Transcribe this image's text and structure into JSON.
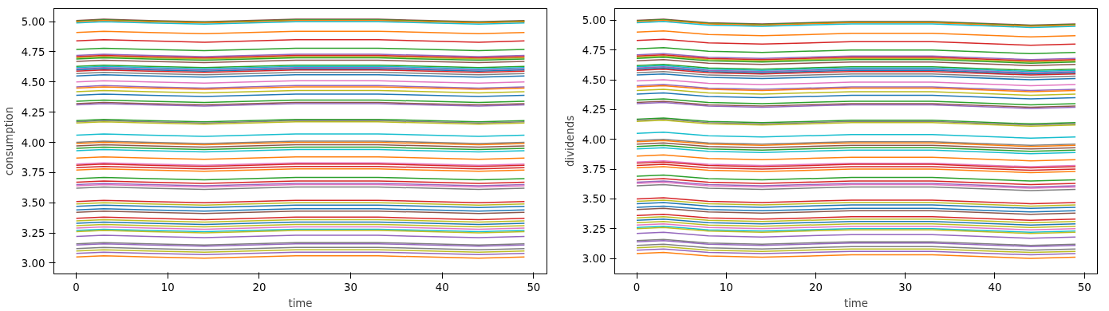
{
  "chart_data": [
    {
      "type": "line",
      "xlabel": "time",
      "ylabel": "consumption",
      "xlim": [
        -2.45,
        51.45
      ],
      "ylim": [
        2.91,
        5.11
      ],
      "xticks": [
        0,
        10,
        20,
        30,
        40,
        50
      ],
      "yticks": [
        {
          "value": 3,
          "label": "3.00"
        },
        {
          "value": 3.25,
          "label": "3.25"
        },
        {
          "value": 3.5,
          "label": "3.50"
        },
        {
          "value": 3.75,
          "label": "3.75"
        },
        {
          "value": 4,
          "label": "4.00"
        },
        {
          "value": 4.25,
          "label": "4.25"
        },
        {
          "value": 4.5,
          "label": "4.50"
        },
        {
          "value": 4.75,
          "label": "4.75"
        },
        {
          "value": 5,
          "label": "5.00"
        }
      ],
      "grid": false,
      "x": [
        0,
        3,
        8,
        14,
        24,
        33,
        44,
        49
      ],
      "series": [
        {
          "color": "#8c564b",
          "values": [
            5.01,
            5.02,
            5.01,
            5.0,
            5.02,
            5.02,
            5.0,
            5.01
          ]
        },
        {
          "color": "#2ca02c",
          "values": [
            5.005,
            5.015,
            5.005,
            4.995,
            5.015,
            5.015,
            4.995,
            5.005
          ]
        },
        {
          "color": "#ff7f0e",
          "values": [
            5.0,
            5.01,
            5.0,
            4.99,
            5.01,
            5.01,
            4.99,
            5.0
          ]
        },
        {
          "color": "#17becf",
          "values": [
            4.99,
            5.0,
            4.99,
            4.98,
            5.0,
            5.0,
            4.98,
            4.99
          ]
        },
        {
          "color": "#ff7f0e",
          "values": [
            4.91,
            4.92,
            4.91,
            4.9,
            4.92,
            4.92,
            4.9,
            4.91
          ]
        },
        {
          "color": "#d62728",
          "values": [
            4.84,
            4.85,
            4.84,
            4.83,
            4.85,
            4.85,
            4.83,
            4.84
          ]
        },
        {
          "color": "#2ca02c",
          "values": [
            4.77,
            4.78,
            4.77,
            4.76,
            4.78,
            4.78,
            4.76,
            4.77
          ]
        },
        {
          "color": "#9467bd",
          "values": [
            4.72,
            4.73,
            4.72,
            4.71,
            4.73,
            4.73,
            4.71,
            4.72
          ]
        },
        {
          "color": "#bcbd22",
          "values": [
            4.7,
            4.71,
            4.7,
            4.69,
            4.71,
            4.71,
            4.69,
            4.7
          ]
        },
        {
          "color": "#d62728",
          "values": [
            4.71,
            4.72,
            4.71,
            4.7,
            4.72,
            4.72,
            4.7,
            4.71
          ]
        },
        {
          "color": "#2ca02c",
          "values": [
            4.69,
            4.7,
            4.69,
            4.68,
            4.7,
            4.7,
            4.68,
            4.69
          ]
        },
        {
          "color": "#8c564b",
          "values": [
            4.67,
            4.68,
            4.67,
            4.66,
            4.68,
            4.68,
            4.66,
            4.67
          ]
        },
        {
          "color": "#2ca02c",
          "values": [
            4.63,
            4.64,
            4.63,
            4.62,
            4.64,
            4.64,
            4.62,
            4.63
          ]
        },
        {
          "color": "#17becf",
          "values": [
            4.62,
            4.63,
            4.62,
            4.61,
            4.63,
            4.63,
            4.61,
            4.62
          ]
        },
        {
          "color": "#9467bd",
          "values": [
            4.61,
            4.62,
            4.61,
            4.6,
            4.62,
            4.62,
            4.6,
            4.61
          ]
        },
        {
          "color": "#1f77b4",
          "values": [
            4.6,
            4.61,
            4.6,
            4.59,
            4.61,
            4.61,
            4.59,
            4.6
          ]
        },
        {
          "color": "#d62728",
          "values": [
            4.59,
            4.6,
            4.59,
            4.58,
            4.6,
            4.6,
            4.58,
            4.59
          ]
        },
        {
          "color": "#7f7f7f",
          "values": [
            4.57,
            4.58,
            4.57,
            4.56,
            4.58,
            4.58,
            4.56,
            4.57
          ]
        },
        {
          "color": "#1f77b4",
          "values": [
            4.55,
            4.56,
            4.55,
            4.54,
            4.56,
            4.56,
            4.54,
            4.55
          ]
        },
        {
          "color": "#e377c2",
          "values": [
            4.5,
            4.51,
            4.5,
            4.49,
            4.51,
            4.51,
            4.49,
            4.5
          ]
        },
        {
          "color": "#9467bd",
          "values": [
            4.46,
            4.47,
            4.46,
            4.45,
            4.47,
            4.47,
            4.45,
            4.46
          ]
        },
        {
          "color": "#ff7f0e",
          "values": [
            4.45,
            4.46,
            4.45,
            4.44,
            4.46,
            4.46,
            4.44,
            4.45
          ]
        },
        {
          "color": "#bcbd22",
          "values": [
            4.42,
            4.43,
            4.42,
            4.41,
            4.43,
            4.43,
            4.41,
            4.42
          ]
        },
        {
          "color": "#1f77b4",
          "values": [
            4.39,
            4.4,
            4.39,
            4.38,
            4.4,
            4.4,
            4.38,
            4.39
          ]
        },
        {
          "color": "#2ca02c",
          "values": [
            4.34,
            4.35,
            4.34,
            4.33,
            4.35,
            4.35,
            4.33,
            4.34
          ]
        },
        {
          "color": "#8c564b",
          "values": [
            4.32,
            4.33,
            4.32,
            4.31,
            4.33,
            4.33,
            4.31,
            4.32
          ]
        },
        {
          "color": "#9467bd",
          "values": [
            4.31,
            4.32,
            4.31,
            4.3,
            4.32,
            4.32,
            4.3,
            4.31
          ]
        },
        {
          "color": "#2ca02c",
          "values": [
            4.18,
            4.19,
            4.18,
            4.17,
            4.19,
            4.19,
            4.17,
            4.18
          ]
        },
        {
          "color": "#7f7f7f",
          "values": [
            4.17,
            4.18,
            4.17,
            4.16,
            4.18,
            4.18,
            4.16,
            4.17
          ]
        },
        {
          "color": "#bcbd22",
          "values": [
            4.16,
            4.17,
            4.16,
            4.15,
            4.17,
            4.17,
            4.15,
            4.16
          ]
        },
        {
          "color": "#17becf",
          "values": [
            4.06,
            4.07,
            4.06,
            4.05,
            4.07,
            4.07,
            4.05,
            4.06
          ]
        },
        {
          "color": "#7f7f7f",
          "values": [
            4.0,
            4.01,
            4.0,
            3.99,
            4.01,
            4.01,
            3.99,
            4.0
          ]
        },
        {
          "color": "#ff7f0e",
          "values": [
            3.99,
            4.0,
            3.99,
            3.98,
            4.0,
            4.0,
            3.98,
            3.99
          ]
        },
        {
          "color": "#8c564b",
          "values": [
            3.97,
            3.98,
            3.97,
            3.96,
            3.98,
            3.98,
            3.96,
            3.97
          ]
        },
        {
          "color": "#2ca02c",
          "values": [
            3.95,
            3.96,
            3.95,
            3.94,
            3.96,
            3.96,
            3.94,
            3.95
          ]
        },
        {
          "color": "#17becf",
          "values": [
            3.93,
            3.94,
            3.93,
            3.92,
            3.94,
            3.94,
            3.92,
            3.93
          ]
        },
        {
          "color": "#ff7f0e",
          "values": [
            3.87,
            3.88,
            3.87,
            3.86,
            3.88,
            3.88,
            3.86,
            3.87
          ]
        },
        {
          "color": "#e377c2",
          "values": [
            3.82,
            3.83,
            3.82,
            3.81,
            3.83,
            3.83,
            3.81,
            3.82
          ]
        },
        {
          "color": "#d62728",
          "values": [
            3.81,
            3.82,
            3.81,
            3.8,
            3.82,
            3.82,
            3.8,
            3.81
          ]
        },
        {
          "color": "#d62728",
          "values": [
            3.79,
            3.8,
            3.79,
            3.78,
            3.8,
            3.8,
            3.78,
            3.79
          ]
        },
        {
          "color": "#ff7f0e",
          "values": [
            3.77,
            3.78,
            3.77,
            3.76,
            3.78,
            3.78,
            3.76,
            3.77
          ]
        },
        {
          "color": "#2ca02c",
          "values": [
            3.7,
            3.71,
            3.7,
            3.69,
            3.71,
            3.71,
            3.69,
            3.7
          ]
        },
        {
          "color": "#d62728",
          "values": [
            3.67,
            3.68,
            3.67,
            3.66,
            3.68,
            3.68,
            3.66,
            3.67
          ]
        },
        {
          "color": "#9467bd",
          "values": [
            3.65,
            3.66,
            3.65,
            3.64,
            3.66,
            3.66,
            3.64,
            3.65
          ]
        },
        {
          "color": "#e377c2",
          "values": [
            3.64,
            3.65,
            3.64,
            3.63,
            3.65,
            3.65,
            3.63,
            3.64
          ]
        },
        {
          "color": "#7f7f7f",
          "values": [
            3.62,
            3.63,
            3.62,
            3.61,
            3.63,
            3.63,
            3.61,
            3.62
          ]
        },
        {
          "color": "#d62728",
          "values": [
            3.51,
            3.52,
            3.51,
            3.5,
            3.52,
            3.52,
            3.5,
            3.51
          ]
        },
        {
          "color": "#bcbd22",
          "values": [
            3.49,
            3.5,
            3.49,
            3.48,
            3.5,
            3.5,
            3.48,
            3.49
          ]
        },
        {
          "color": "#1f77b4",
          "values": [
            3.47,
            3.48,
            3.47,
            3.46,
            3.48,
            3.48,
            3.46,
            3.47
          ]
        },
        {
          "color": "#1f77b4",
          "values": [
            3.44,
            3.45,
            3.44,
            3.43,
            3.45,
            3.45,
            3.43,
            3.44
          ]
        },
        {
          "color": "#8c564b",
          "values": [
            3.42,
            3.43,
            3.42,
            3.41,
            3.43,
            3.43,
            3.41,
            3.42
          ]
        },
        {
          "color": "#d62728",
          "values": [
            3.37,
            3.38,
            3.37,
            3.36,
            3.38,
            3.38,
            3.36,
            3.37
          ]
        },
        {
          "color": "#bcbd22",
          "values": [
            3.35,
            3.36,
            3.35,
            3.34,
            3.36,
            3.36,
            3.34,
            3.35
          ]
        },
        {
          "color": "#1f77b4",
          "values": [
            3.33,
            3.34,
            3.33,
            3.32,
            3.34,
            3.34,
            3.32,
            3.33
          ]
        },
        {
          "color": "#bcbd22",
          "values": [
            3.31,
            3.32,
            3.31,
            3.3,
            3.32,
            3.32,
            3.3,
            3.31
          ]
        },
        {
          "color": "#e377c2",
          "values": [
            3.29,
            3.3,
            3.29,
            3.28,
            3.3,
            3.3,
            3.28,
            3.29
          ]
        },
        {
          "color": "#17becf",
          "values": [
            3.27,
            3.28,
            3.27,
            3.26,
            3.28,
            3.28,
            3.26,
            3.27
          ]
        },
        {
          "color": "#bcbd22",
          "values": [
            3.26,
            3.27,
            3.26,
            3.25,
            3.27,
            3.27,
            3.25,
            3.26
          ]
        },
        {
          "color": "#9467bd",
          "values": [
            3.22,
            3.23,
            3.22,
            3.21,
            3.23,
            3.23,
            3.21,
            3.22
          ]
        },
        {
          "color": "#7f7f7f",
          "values": [
            3.16,
            3.17,
            3.16,
            3.15,
            3.17,
            3.17,
            3.15,
            3.16
          ]
        },
        {
          "color": "#9467bd",
          "values": [
            3.15,
            3.16,
            3.15,
            3.14,
            3.16,
            3.16,
            3.14,
            3.15
          ]
        },
        {
          "color": "#7f7f7f",
          "values": [
            3.12,
            3.13,
            3.12,
            3.11,
            3.13,
            3.13,
            3.11,
            3.12
          ]
        },
        {
          "color": "#bcbd22",
          "values": [
            3.1,
            3.11,
            3.1,
            3.09,
            3.11,
            3.11,
            3.09,
            3.1
          ]
        },
        {
          "color": "#9467bd",
          "values": [
            3.08,
            3.09,
            3.08,
            3.07,
            3.09,
            3.09,
            3.07,
            3.08
          ]
        },
        {
          "color": "#ff7f0e",
          "values": [
            3.05,
            3.06,
            3.05,
            3.04,
            3.06,
            3.06,
            3.04,
            3.05
          ]
        }
      ]
    },
    {
      "type": "line",
      "xlabel": "time",
      "ylabel": "dividends",
      "xlim": [
        -2.45,
        51.45
      ],
      "ylim": [
        2.87,
        5.1
      ],
      "xticks": [
        0,
        10,
        20,
        30,
        40,
        50
      ],
      "yticks": [
        {
          "value": 3,
          "label": "3.00"
        },
        {
          "value": 3.25,
          "label": "3.25"
        },
        {
          "value": 3.5,
          "label": "3.50"
        },
        {
          "value": 3.75,
          "label": "3.75"
        },
        {
          "value": 4,
          "label": "4.00"
        },
        {
          "value": 4.25,
          "label": "4.25"
        },
        {
          "value": 4.5,
          "label": "4.50"
        },
        {
          "value": 4.75,
          "label": "4.75"
        },
        {
          "value": 5,
          "label": "5.00"
        }
      ],
      "grid": false,
      "x": [
        0,
        3,
        8,
        14,
        24,
        33,
        44,
        49
      ],
      "series": [
        {
          "color": "#8c564b",
          "values": [
            5.0,
            5.01,
            4.98,
            4.97,
            4.99,
            4.99,
            4.96,
            4.97
          ]
        },
        {
          "color": "#2ca02c",
          "values": [
            4.995,
            5.005,
            4.975,
            4.965,
            4.985,
            4.985,
            4.955,
            4.965
          ]
        },
        {
          "color": "#ff7f0e",
          "values": [
            4.99,
            5.0,
            4.97,
            4.96,
            4.98,
            4.98,
            4.95,
            4.96
          ]
        },
        {
          "color": "#17becf",
          "values": [
            4.98,
            4.99,
            4.96,
            4.95,
            4.97,
            4.97,
            4.94,
            4.95
          ]
        },
        {
          "color": "#ff7f0e",
          "values": [
            4.9,
            4.91,
            4.88,
            4.87,
            4.89,
            4.89,
            4.86,
            4.87
          ]
        },
        {
          "color": "#d62728",
          "values": [
            4.83,
            4.84,
            4.81,
            4.8,
            4.82,
            4.82,
            4.79,
            4.8
          ]
        },
        {
          "color": "#2ca02c",
          "values": [
            4.76,
            4.77,
            4.74,
            4.73,
            4.75,
            4.75,
            4.72,
            4.73
          ]
        },
        {
          "color": "#9467bd",
          "values": [
            4.71,
            4.72,
            4.69,
            4.68,
            4.7,
            4.7,
            4.67,
            4.68
          ]
        },
        {
          "color": "#bcbd22",
          "values": [
            4.69,
            4.7,
            4.67,
            4.66,
            4.68,
            4.68,
            4.65,
            4.66
          ]
        },
        {
          "color": "#d62728",
          "values": [
            4.7,
            4.71,
            4.68,
            4.67,
            4.69,
            4.69,
            4.66,
            4.67
          ]
        },
        {
          "color": "#2ca02c",
          "values": [
            4.68,
            4.69,
            4.66,
            4.65,
            4.67,
            4.67,
            4.64,
            4.65
          ]
        },
        {
          "color": "#8c564b",
          "values": [
            4.66,
            4.67,
            4.64,
            4.63,
            4.65,
            4.65,
            4.62,
            4.63
          ]
        },
        {
          "color": "#2ca02c",
          "values": [
            4.62,
            4.63,
            4.6,
            4.59,
            4.61,
            4.61,
            4.58,
            4.59
          ]
        },
        {
          "color": "#17becf",
          "values": [
            4.61,
            4.62,
            4.59,
            4.58,
            4.6,
            4.6,
            4.57,
            4.58
          ]
        },
        {
          "color": "#9467bd",
          "values": [
            4.6,
            4.61,
            4.58,
            4.57,
            4.59,
            4.59,
            4.56,
            4.57
          ]
        },
        {
          "color": "#1f77b4",
          "values": [
            4.59,
            4.6,
            4.57,
            4.56,
            4.58,
            4.58,
            4.55,
            4.56
          ]
        },
        {
          "color": "#d62728",
          "values": [
            4.58,
            4.59,
            4.56,
            4.55,
            4.57,
            4.57,
            4.54,
            4.55
          ]
        },
        {
          "color": "#7f7f7f",
          "values": [
            4.56,
            4.57,
            4.54,
            4.53,
            4.55,
            4.55,
            4.52,
            4.53
          ]
        },
        {
          "color": "#1f77b4",
          "values": [
            4.54,
            4.55,
            4.52,
            4.51,
            4.53,
            4.53,
            4.5,
            4.51
          ]
        },
        {
          "color": "#e377c2",
          "values": [
            4.49,
            4.5,
            4.47,
            4.46,
            4.48,
            4.48,
            4.45,
            4.46
          ]
        },
        {
          "color": "#9467bd",
          "values": [
            4.45,
            4.46,
            4.43,
            4.42,
            4.44,
            4.44,
            4.41,
            4.42
          ]
        },
        {
          "color": "#ff7f0e",
          "values": [
            4.44,
            4.45,
            4.42,
            4.41,
            4.43,
            4.43,
            4.4,
            4.41
          ]
        },
        {
          "color": "#bcbd22",
          "values": [
            4.41,
            4.42,
            4.39,
            4.38,
            4.4,
            4.4,
            4.37,
            4.38
          ]
        },
        {
          "color": "#1f77b4",
          "values": [
            4.38,
            4.39,
            4.36,
            4.35,
            4.37,
            4.37,
            4.34,
            4.35
          ]
        },
        {
          "color": "#2ca02c",
          "values": [
            4.33,
            4.34,
            4.31,
            4.3,
            4.32,
            4.32,
            4.29,
            4.3
          ]
        },
        {
          "color": "#8c564b",
          "values": [
            4.31,
            4.32,
            4.29,
            4.28,
            4.3,
            4.3,
            4.27,
            4.28
          ]
        },
        {
          "color": "#9467bd",
          "values": [
            4.3,
            4.31,
            4.28,
            4.27,
            4.29,
            4.29,
            4.26,
            4.27
          ]
        },
        {
          "color": "#2ca02c",
          "values": [
            4.17,
            4.18,
            4.15,
            4.14,
            4.16,
            4.16,
            4.13,
            4.14
          ]
        },
        {
          "color": "#7f7f7f",
          "values": [
            4.16,
            4.17,
            4.14,
            4.13,
            4.15,
            4.15,
            4.12,
            4.13
          ]
        },
        {
          "color": "#bcbd22",
          "values": [
            4.15,
            4.16,
            4.13,
            4.12,
            4.14,
            4.14,
            4.11,
            4.12
          ]
        },
        {
          "color": "#17becf",
          "values": [
            4.05,
            4.06,
            4.03,
            4.02,
            4.04,
            4.04,
            4.01,
            4.02
          ]
        },
        {
          "color": "#7f7f7f",
          "values": [
            3.99,
            4.0,
            3.97,
            3.96,
            3.98,
            3.98,
            3.95,
            3.96
          ]
        },
        {
          "color": "#ff7f0e",
          "values": [
            3.98,
            3.99,
            3.96,
            3.95,
            3.97,
            3.97,
            3.94,
            3.95
          ]
        },
        {
          "color": "#8c564b",
          "values": [
            3.96,
            3.97,
            3.94,
            3.93,
            3.95,
            3.95,
            3.92,
            3.93
          ]
        },
        {
          "color": "#2ca02c",
          "values": [
            3.94,
            3.95,
            3.92,
            3.91,
            3.93,
            3.93,
            3.9,
            3.91
          ]
        },
        {
          "color": "#17becf",
          "values": [
            3.92,
            3.93,
            3.9,
            3.89,
            3.91,
            3.91,
            3.88,
            3.89
          ]
        },
        {
          "color": "#ff7f0e",
          "values": [
            3.86,
            3.87,
            3.84,
            3.83,
            3.85,
            3.85,
            3.82,
            3.83
          ]
        },
        {
          "color": "#e377c2",
          "values": [
            3.81,
            3.82,
            3.79,
            3.78,
            3.8,
            3.8,
            3.77,
            3.78
          ]
        },
        {
          "color": "#d62728",
          "values": [
            3.8,
            3.81,
            3.78,
            3.77,
            3.79,
            3.79,
            3.76,
            3.77
          ]
        },
        {
          "color": "#d62728",
          "values": [
            3.78,
            3.79,
            3.76,
            3.75,
            3.77,
            3.77,
            3.74,
            3.75
          ]
        },
        {
          "color": "#ff7f0e",
          "values": [
            3.76,
            3.77,
            3.74,
            3.73,
            3.75,
            3.75,
            3.72,
            3.73
          ]
        },
        {
          "color": "#2ca02c",
          "values": [
            3.69,
            3.7,
            3.67,
            3.66,
            3.68,
            3.68,
            3.65,
            3.66
          ]
        },
        {
          "color": "#d62728",
          "values": [
            3.66,
            3.67,
            3.64,
            3.63,
            3.65,
            3.65,
            3.62,
            3.63
          ]
        },
        {
          "color": "#9467bd",
          "values": [
            3.64,
            3.65,
            3.62,
            3.61,
            3.63,
            3.63,
            3.6,
            3.61
          ]
        },
        {
          "color": "#e377c2",
          "values": [
            3.63,
            3.64,
            3.61,
            3.6,
            3.62,
            3.62,
            3.59,
            3.6
          ]
        },
        {
          "color": "#7f7f7f",
          "values": [
            3.61,
            3.62,
            3.59,
            3.58,
            3.6,
            3.6,
            3.57,
            3.58
          ]
        },
        {
          "color": "#d62728",
          "values": [
            3.5,
            3.51,
            3.48,
            3.47,
            3.49,
            3.49,
            3.46,
            3.47
          ]
        },
        {
          "color": "#bcbd22",
          "values": [
            3.48,
            3.49,
            3.46,
            3.45,
            3.47,
            3.47,
            3.44,
            3.45
          ]
        },
        {
          "color": "#1f77b4",
          "values": [
            3.46,
            3.47,
            3.44,
            3.43,
            3.45,
            3.45,
            3.42,
            3.43
          ]
        },
        {
          "color": "#1f77b4",
          "values": [
            3.43,
            3.44,
            3.41,
            3.4,
            3.42,
            3.42,
            3.39,
            3.4
          ]
        },
        {
          "color": "#8c564b",
          "values": [
            3.41,
            3.42,
            3.39,
            3.38,
            3.4,
            3.4,
            3.37,
            3.38
          ]
        },
        {
          "color": "#d62728",
          "values": [
            3.36,
            3.37,
            3.34,
            3.33,
            3.35,
            3.35,
            3.32,
            3.33
          ]
        },
        {
          "color": "#bcbd22",
          "values": [
            3.34,
            3.35,
            3.32,
            3.31,
            3.33,
            3.33,
            3.3,
            3.31
          ]
        },
        {
          "color": "#1f77b4",
          "values": [
            3.32,
            3.33,
            3.3,
            3.29,
            3.31,
            3.31,
            3.28,
            3.29
          ]
        },
        {
          "color": "#bcbd22",
          "values": [
            3.3,
            3.31,
            3.28,
            3.27,
            3.29,
            3.29,
            3.26,
            3.27
          ]
        },
        {
          "color": "#e377c2",
          "values": [
            3.28,
            3.29,
            3.26,
            3.25,
            3.27,
            3.27,
            3.24,
            3.25
          ]
        },
        {
          "color": "#17becf",
          "values": [
            3.26,
            3.27,
            3.24,
            3.23,
            3.25,
            3.25,
            3.22,
            3.23
          ]
        },
        {
          "color": "#bcbd22",
          "values": [
            3.25,
            3.26,
            3.23,
            3.22,
            3.24,
            3.24,
            3.21,
            3.22
          ]
        },
        {
          "color": "#9467bd",
          "values": [
            3.21,
            3.22,
            3.19,
            3.18,
            3.2,
            3.2,
            3.17,
            3.18
          ]
        },
        {
          "color": "#7f7f7f",
          "values": [
            3.15,
            3.16,
            3.13,
            3.12,
            3.14,
            3.14,
            3.11,
            3.12
          ]
        },
        {
          "color": "#9467bd",
          "values": [
            3.14,
            3.15,
            3.12,
            3.11,
            3.13,
            3.13,
            3.1,
            3.11
          ]
        },
        {
          "color": "#7f7f7f",
          "values": [
            3.11,
            3.12,
            3.09,
            3.08,
            3.1,
            3.1,
            3.07,
            3.08
          ]
        },
        {
          "color": "#bcbd22",
          "values": [
            3.09,
            3.1,
            3.07,
            3.06,
            3.08,
            3.08,
            3.05,
            3.06
          ]
        },
        {
          "color": "#9467bd",
          "values": [
            3.07,
            3.08,
            3.05,
            3.04,
            3.06,
            3.06,
            3.03,
            3.04
          ]
        },
        {
          "color": "#ff7f0e",
          "values": [
            3.04,
            3.05,
            3.02,
            3.01,
            3.03,
            3.03,
            3.0,
            3.01
          ]
        }
      ]
    }
  ]
}
